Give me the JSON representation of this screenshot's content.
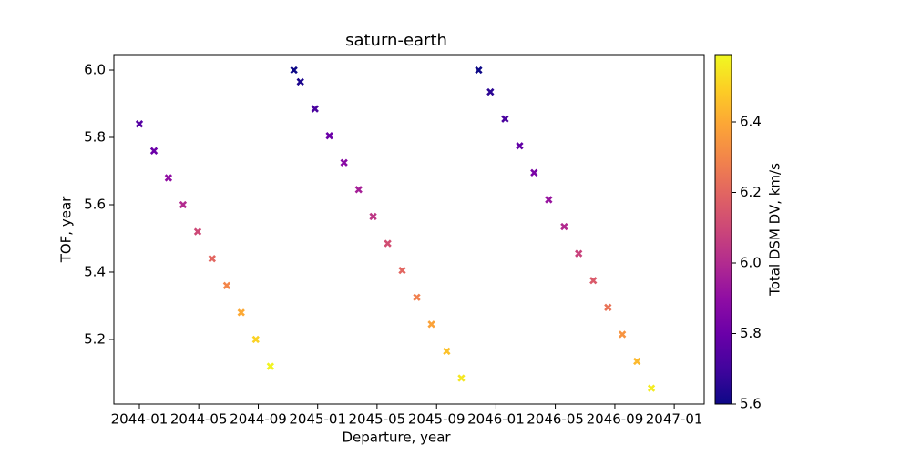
{
  "chart_data": {
    "type": "scatter",
    "title": "saturn-earth",
    "x_label": "Departure, year",
    "y_label": "TOF, year",
    "colorbar_label": "Total DSM DV, km/s",
    "colormap": "plasma",
    "marker": "X",
    "x": [
      2044.0,
      2044.082,
      2044.163,
      2044.245,
      2044.327,
      2044.408,
      2044.49,
      2044.571,
      2044.653,
      2044.735,
      2044.867,
      2044.903,
      2044.985,
      2045.066,
      2045.148,
      2045.23,
      2045.311,
      2045.393,
      2045.474,
      2045.556,
      2045.638,
      2045.724,
      2045.806,
      2045.903,
      2045.969,
      2046.051,
      2046.133,
      2046.214,
      2046.296,
      2046.383,
      2046.464,
      2046.546,
      2046.628,
      2046.709,
      2046.791,
      2046.872
    ],
    "values": [
      5.84,
      5.76,
      5.68,
      5.6,
      5.52,
      5.44,
      5.36,
      5.28,
      5.2,
      5.12,
      6.0,
      5.965,
      5.885,
      5.805,
      5.725,
      5.645,
      5.565,
      5.485,
      5.405,
      5.325,
      5.245,
      5.165,
      5.085,
      6.0,
      5.935,
      5.855,
      5.775,
      5.695,
      5.615,
      5.535,
      5.455,
      5.375,
      5.295,
      5.215,
      5.135,
      5.055
    ],
    "color_values": [
      5.75,
      5.8,
      5.9,
      6.0,
      6.1,
      6.2,
      6.3,
      6.4,
      6.5,
      6.58,
      5.6,
      5.63,
      5.72,
      5.8,
      5.88,
      5.96,
      6.04,
      6.12,
      6.2,
      6.28,
      6.38,
      6.46,
      6.55,
      5.6,
      5.66,
      5.72,
      5.78,
      5.84,
      5.92,
      6.0,
      6.08,
      6.16,
      6.24,
      6.34,
      6.44,
      6.56
    ],
    "xlim": [
      2043.857,
      2047.168
    ],
    "xticks": [
      {
        "value": 2044.0,
        "label": "2044-01"
      },
      {
        "value": 2044.333,
        "label": "2044-05"
      },
      {
        "value": 2044.667,
        "label": "2044-09"
      },
      {
        "value": 2045.0,
        "label": "2045-01"
      },
      {
        "value": 2045.333,
        "label": "2045-05"
      },
      {
        "value": 2045.667,
        "label": "2045-09"
      },
      {
        "value": 2046.0,
        "label": "2046-01"
      },
      {
        "value": 2046.333,
        "label": "2046-05"
      },
      {
        "value": 2046.667,
        "label": "2046-09"
      },
      {
        "value": 2047.0,
        "label": "2047-01"
      }
    ],
    "ylim": [
      5.008,
      6.046
    ],
    "yticks": [
      5.2,
      5.4,
      5.6,
      5.8,
      {
        "value": 6.0,
        "label": "6.0"
      }
    ],
    "clim": [
      5.6,
      6.591
    ],
    "cticks": [
      5.6,
      5.8,
      {
        "value": 6.0,
        "label": "6.0"
      },
      6.2,
      6.4
    ]
  }
}
